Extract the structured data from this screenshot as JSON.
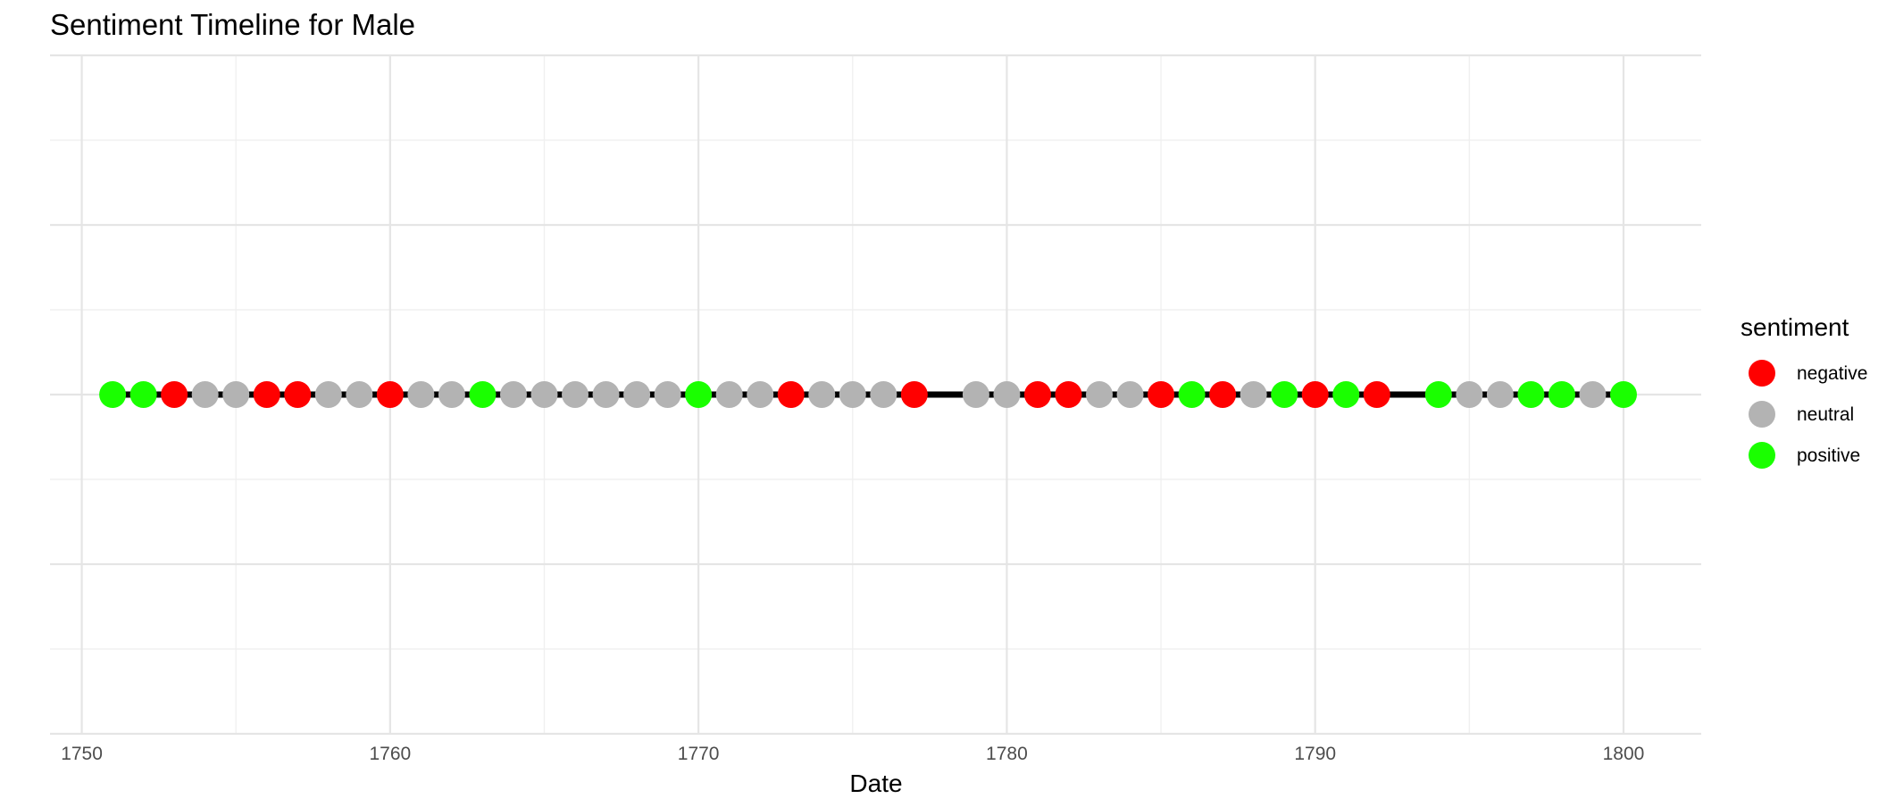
{
  "chart_data": {
    "type": "scatter",
    "title": "Sentiment Timeline for Male",
    "xlabel": "Date",
    "ylabel": "",
    "xlim": [
      1748.97,
      1802.52
    ],
    "x_ticks": [
      1750,
      1760,
      1770,
      1780,
      1790,
      1800
    ],
    "grid": true,
    "legend": {
      "title": "sentiment",
      "position": "right",
      "entries": [
        {
          "key": "negative",
          "label": "negative",
          "color": "#ff0000"
        },
        {
          "key": "neutral",
          "label": "neutral",
          "color": "#b3b3b3"
        },
        {
          "key": "positive",
          "label": "positive",
          "color": "#1aff00"
        }
      ]
    },
    "line": {
      "x_start": 1751,
      "x_end": 1800,
      "color": "#000000"
    },
    "points": [
      {
        "x": 1751,
        "sentiment": "positive"
      },
      {
        "x": 1752,
        "sentiment": "positive"
      },
      {
        "x": 1753,
        "sentiment": "negative"
      },
      {
        "x": 1754,
        "sentiment": "neutral"
      },
      {
        "x": 1755,
        "sentiment": "neutral"
      },
      {
        "x": 1756,
        "sentiment": "negative"
      },
      {
        "x": 1757,
        "sentiment": "negative"
      },
      {
        "x": 1758,
        "sentiment": "neutral"
      },
      {
        "x": 1759,
        "sentiment": "neutral"
      },
      {
        "x": 1760,
        "sentiment": "negative"
      },
      {
        "x": 1761,
        "sentiment": "neutral"
      },
      {
        "x": 1762,
        "sentiment": "neutral"
      },
      {
        "x": 1763,
        "sentiment": "positive"
      },
      {
        "x": 1764,
        "sentiment": "neutral"
      },
      {
        "x": 1765,
        "sentiment": "neutral"
      },
      {
        "x": 1766,
        "sentiment": "neutral"
      },
      {
        "x": 1767,
        "sentiment": "neutral"
      },
      {
        "x": 1768,
        "sentiment": "neutral"
      },
      {
        "x": 1769,
        "sentiment": "neutral"
      },
      {
        "x": 1770,
        "sentiment": "positive"
      },
      {
        "x": 1771,
        "sentiment": "neutral"
      },
      {
        "x": 1772,
        "sentiment": "neutral"
      },
      {
        "x": 1773,
        "sentiment": "negative"
      },
      {
        "x": 1774,
        "sentiment": "neutral"
      },
      {
        "x": 1775,
        "sentiment": "neutral"
      },
      {
        "x": 1776,
        "sentiment": "neutral"
      },
      {
        "x": 1777,
        "sentiment": "negative"
      },
      {
        "x": 1779,
        "sentiment": "neutral"
      },
      {
        "x": 1780,
        "sentiment": "neutral"
      },
      {
        "x": 1781,
        "sentiment": "negative"
      },
      {
        "x": 1782,
        "sentiment": "negative"
      },
      {
        "x": 1783,
        "sentiment": "neutral"
      },
      {
        "x": 1784,
        "sentiment": "neutral"
      },
      {
        "x": 1785,
        "sentiment": "negative"
      },
      {
        "x": 1786,
        "sentiment": "positive"
      },
      {
        "x": 1787,
        "sentiment": "negative"
      },
      {
        "x": 1788,
        "sentiment": "neutral"
      },
      {
        "x": 1789,
        "sentiment": "positive"
      },
      {
        "x": 1790,
        "sentiment": "negative"
      },
      {
        "x": 1791,
        "sentiment": "positive"
      },
      {
        "x": 1792,
        "sentiment": "negative"
      },
      {
        "x": 1794,
        "sentiment": "positive"
      },
      {
        "x": 1795,
        "sentiment": "neutral"
      },
      {
        "x": 1796,
        "sentiment": "neutral"
      },
      {
        "x": 1797,
        "sentiment": "positive"
      },
      {
        "x": 1798,
        "sentiment": "positive"
      },
      {
        "x": 1799,
        "sentiment": "neutral"
      },
      {
        "x": 1800,
        "sentiment": "positive"
      }
    ]
  }
}
